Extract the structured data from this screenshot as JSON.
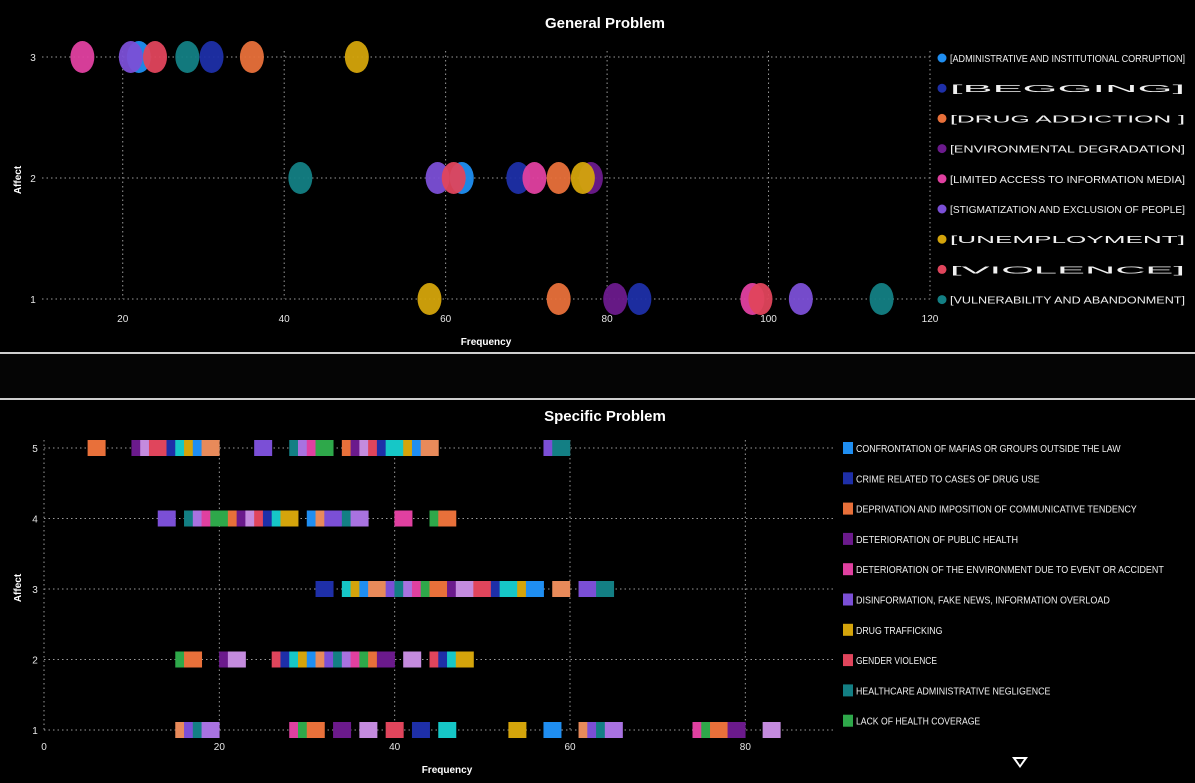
{
  "chart_data": [
    {
      "type": "scatter",
      "title": "General Problem",
      "xlabel": "Frequency",
      "ylabel": "Affect",
      "xticks": [
        "20",
        "40",
        "60",
        "80",
        "100",
        "120"
      ],
      "yticks": [
        "1",
        "2",
        "3"
      ],
      "xlim": [
        10,
        120
      ],
      "ylim": [
        1,
        3
      ],
      "grid": true,
      "legend_position": "right",
      "series": [
        {
          "name": "[ADMINISTRATIVE AND INSTITUTIONAL CORRUPTION]",
          "color": "#1f8ef1",
          "points": [
            [
              22,
              3
            ],
            [
              62,
              2
            ]
          ]
        },
        {
          "name": "[BEGGING]",
          "color": "#1e2fa8",
          "points": [
            [
              31,
              3
            ],
            [
              69,
              2
            ],
            [
              84,
              1
            ]
          ]
        },
        {
          "name": "[DRUG ADDICTION ]",
          "color": "#e8703a",
          "points": [
            [
              36,
              3
            ],
            [
              74,
              2
            ],
            [
              74,
              1
            ]
          ]
        },
        {
          "name": "[ENVIRONMENTAL DEGRADATION]",
          "color": "#6b1a8c",
          "points": [
            [
              78,
              2
            ],
            [
              81,
              1
            ]
          ]
        },
        {
          "name": "[LIMITED ACCESS TO INFORMATION MEDIA]",
          "color": "#e040a0",
          "points": [
            [
              15,
              3
            ],
            [
              71,
              2
            ],
            [
              98,
              1
            ]
          ]
        },
        {
          "name": "[STIGMATIZATION AND EXCLUSION OF PEOPLE]",
          "color": "#7b4fd6",
          "points": [
            [
              21,
              3
            ],
            [
              59,
              2
            ],
            [
              104,
              1
            ]
          ]
        },
        {
          "name": "[UNEMPLOYMENT]",
          "color": "#d4a40b",
          "points": [
            [
              49,
              3
            ],
            [
              77,
              2
            ],
            [
              58,
              1
            ]
          ]
        },
        {
          "name": "[VIOLENCE]",
          "color": "#e0455c",
          "points": [
            [
              24,
              3
            ],
            [
              61,
              2
            ],
            [
              99,
              1
            ]
          ]
        },
        {
          "name": "[VULNERABILITY AND ABANDONMENT]",
          "color": "#137f84",
          "points": [
            [
              28,
              3
            ],
            [
              42,
              2
            ],
            [
              114,
              1
            ]
          ]
        }
      ]
    },
    {
      "type": "scatter",
      "title": "Specific Problem",
      "xlabel": "Frequency",
      "ylabel": "Affect",
      "xticks": [
        "0",
        "20",
        "40",
        "60",
        "80"
      ],
      "yticks": [
        "1",
        "2",
        "3",
        "4",
        "5"
      ],
      "xlim": [
        0,
        90
      ],
      "ylim": [
        1,
        5
      ],
      "grid": true,
      "legend_position": "right",
      "legend": [
        {
          "name": "CONFRONTATION OF MAFIAS OR GROUPS OUTSIDE THE LAW",
          "color": "#1f8ef1"
        },
        {
          "name": "CRIME RELATED TO CASES OF DRUG USE",
          "color": "#1e2fa8"
        },
        {
          "name": "DEPRIVATION AND IMPOSITION OF COMMUNICATIVE TENDENCY",
          "color": "#e8703a"
        },
        {
          "name": "DETERIORATION OF PUBLIC HEALTH",
          "color": "#6b1a8c"
        },
        {
          "name": "DETERIORATION OF THE ENVIRONMENT DUE TO EVENT OR ACCIDENT",
          "color": "#e040a0"
        },
        {
          "name": "DISINFORMATION, FAKE NEWS, INFORMATION OVERLOAD",
          "color": "#7b4fd6"
        },
        {
          "name": "DRUG TRAFFICKING",
          "color": "#d4a40b"
        },
        {
          "name": "GENDER VIOLENCE",
          "color": "#e0455c"
        },
        {
          "name": "HEALTHCARE ADMINISTRATIVE NEGLIGENCE",
          "color": "#137f84"
        },
        {
          "name": "LACK OF HEALTH COVERAGE",
          "color": "#2ea84a"
        }
      ],
      "palette": [
        "#e8703a",
        "#e0455c",
        "#d4a40b",
        "#7b4fd6",
        "#e040a0",
        "#6b1a8c",
        "#1e2fa8",
        "#1f8ef1",
        "#137f84",
        "#2ea84a",
        "#c48bde",
        "#16c7c7",
        "#e88a5a",
        "#a872e0"
      ],
      "rows": [
        {
          "affect": 5,
          "x": [
            6,
            11,
            12,
            13,
            15,
            16,
            17,
            18,
            19,
            25,
            29,
            30,
            31,
            32,
            35,
            36,
            37,
            38,
            39,
            40,
            42,
            43,
            44,
            58,
            59
          ]
        },
        {
          "affect": 4,
          "x": [
            14,
            17,
            18,
            19,
            20,
            22,
            23,
            24,
            25,
            26,
            27,
            28,
            31,
            32,
            33,
            35,
            36,
            41,
            45,
            46
          ]
        },
        {
          "affect": 3,
          "x": [
            32,
            35,
            36,
            37,
            38,
            40,
            41,
            42,
            43,
            44,
            45,
            47,
            48,
            50,
            52,
            53,
            55,
            56,
            59,
            62,
            64
          ]
        },
        {
          "affect": 2,
          "x": [
            16,
            17,
            21,
            22,
            27,
            28,
            29,
            30,
            31,
            32,
            33,
            34,
            35,
            36,
            37,
            38,
            39,
            42,
            45,
            46,
            47,
            48
          ]
        },
        {
          "affect": 1,
          "x": [
            16,
            17,
            18,
            19,
            29,
            30,
            31,
            34,
            37,
            40,
            43,
            46,
            54,
            58,
            62,
            63,
            64,
            65,
            75,
            76,
            77,
            79,
            83
          ]
        }
      ]
    }
  ]
}
